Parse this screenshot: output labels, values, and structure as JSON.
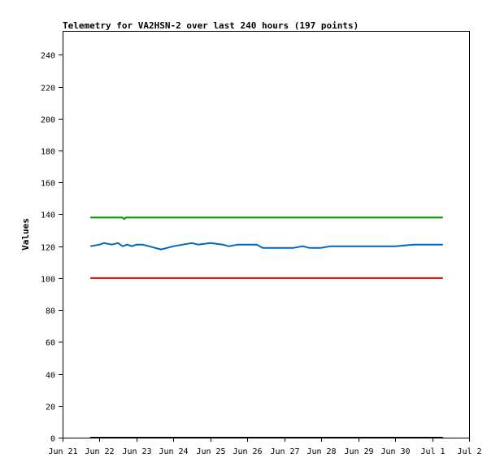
{
  "chart_data": {
    "type": "line",
    "title": "Telemetry for VA2HSN-2 over last 240 hours (197 points)",
    "xlabel": "",
    "ylabel": "Values",
    "ylim": [
      0,
      255
    ],
    "yticks": [
      0,
      20,
      40,
      60,
      80,
      100,
      120,
      140,
      160,
      180,
      200,
      220,
      240
    ],
    "xlim": [
      "2022-06-21",
      "2022-07-02"
    ],
    "xticks": [
      {
        "label": "Jun 21",
        "date": "2022-06-21"
      },
      {
        "label": "Jun 22",
        "date": "2022-06-22"
      },
      {
        "label": "Jun 23",
        "date": "2022-06-23"
      },
      {
        "label": "Jun 24",
        "date": "2022-06-24"
      },
      {
        "label": "Jun 25",
        "date": "2022-06-25"
      },
      {
        "label": "Jun 26",
        "date": "2022-06-26"
      },
      {
        "label": "Jun 27",
        "date": "2022-06-27"
      },
      {
        "label": "Jun 28",
        "date": "2022-06-28"
      },
      {
        "label": "Jun 29",
        "date": "2022-06-29"
      },
      {
        "label": "Jun 30",
        "date": "2022-06-30"
      },
      {
        "label": "Jul 1",
        "date": "2022-07-01"
      },
      {
        "label": "Jul 2",
        "date": "2022-07-02"
      }
    ],
    "grid": false,
    "legend": "none",
    "series": [
      {
        "color": "#009900",
        "points": [
          [
            "2022-06-21T18:00",
            138
          ],
          [
            "2022-06-22T15:00",
            138
          ],
          [
            "2022-06-22T16:00",
            137
          ],
          [
            "2022-06-22T17:00",
            138
          ],
          [
            "2022-07-01T07:00",
            138
          ]
        ]
      },
      {
        "color": "#0066bb",
        "points": [
          [
            "2022-06-21T18:00",
            120
          ],
          [
            "2022-06-22T00:00",
            121
          ],
          [
            "2022-06-22T03:00",
            122
          ],
          [
            "2022-06-22T08:00",
            121
          ],
          [
            "2022-06-22T12:00",
            122
          ],
          [
            "2022-06-22T15:00",
            120
          ],
          [
            "2022-06-22T18:00",
            121
          ],
          [
            "2022-06-22T21:00",
            120
          ],
          [
            "2022-06-23T00:00",
            121
          ],
          [
            "2022-06-23T04:00",
            121
          ],
          [
            "2022-06-23T08:00",
            120
          ],
          [
            "2022-06-23T12:00",
            119
          ],
          [
            "2022-06-23T16:00",
            118
          ],
          [
            "2022-06-23T20:00",
            119
          ],
          [
            "2022-06-24T00:00",
            120
          ],
          [
            "2022-06-24T06:00",
            121
          ],
          [
            "2022-06-24T12:00",
            122
          ],
          [
            "2022-06-24T16:00",
            121
          ],
          [
            "2022-06-25T00:00",
            122
          ],
          [
            "2022-06-25T08:00",
            121
          ],
          [
            "2022-06-25T12:00",
            120
          ],
          [
            "2022-06-25T18:00",
            121
          ],
          [
            "2022-06-26T06:00",
            121
          ],
          [
            "2022-06-26T10:00",
            119
          ],
          [
            "2022-06-26T18:00",
            119
          ],
          [
            "2022-06-27T06:00",
            119
          ],
          [
            "2022-06-27T12:00",
            120
          ],
          [
            "2022-06-27T16:00",
            119
          ],
          [
            "2022-06-28T00:00",
            119
          ],
          [
            "2022-06-28T06:00",
            120
          ],
          [
            "2022-06-29T00:00",
            120
          ],
          [
            "2022-06-30T00:00",
            120
          ],
          [
            "2022-06-30T12:00",
            121
          ],
          [
            "2022-07-01T00:00",
            121
          ],
          [
            "2022-07-01T07:00",
            121
          ]
        ]
      },
      {
        "color": "#dd0000",
        "points": [
          [
            "2022-06-21T18:00",
            100
          ],
          [
            "2022-07-01T07:00",
            100
          ]
        ]
      },
      {
        "color": "#000000",
        "points": [
          [
            "2022-06-21T18:00",
            0
          ],
          [
            "2022-07-01T07:00",
            0
          ]
        ]
      }
    ]
  }
}
